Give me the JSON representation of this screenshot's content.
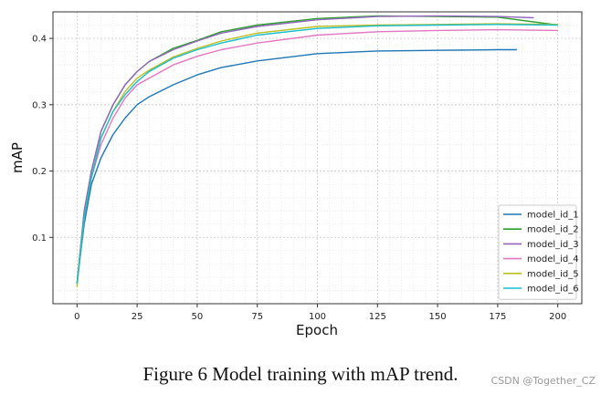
{
  "chart_data": {
    "type": "line",
    "title": "",
    "xlabel": "Epoch",
    "ylabel": "mAP",
    "xlim": [
      -10,
      210
    ],
    "ylim": [
      0.0,
      0.44
    ],
    "xticks": [
      0,
      25,
      50,
      75,
      100,
      125,
      150,
      175,
      200
    ],
    "yticks": [
      0.1,
      0.2,
      0.3,
      0.4
    ],
    "ytick_labels": [
      "0.1",
      "0.2",
      "0.3",
      "0.4"
    ],
    "grid": true,
    "legend_position": "lower-right",
    "series": [
      {
        "name": "model_id_1",
        "color": "#1f77b4",
        "x": [
          0,
          3,
          6,
          10,
          15,
          20,
          25,
          30,
          40,
          50,
          60,
          75,
          100,
          125,
          150,
          175,
          183
        ],
        "y": [
          0.03,
          0.12,
          0.18,
          0.22,
          0.255,
          0.28,
          0.3,
          0.312,
          0.33,
          0.345,
          0.356,
          0.366,
          0.377,
          0.381,
          0.382,
          0.383,
          0.383
        ]
      },
      {
        "name": "model_id_2",
        "color": "#2ca02c",
        "x": [
          0,
          3,
          6,
          10,
          15,
          20,
          25,
          30,
          40,
          50,
          60,
          75,
          100,
          125,
          150,
          175,
          200
        ],
        "y": [
          0.03,
          0.14,
          0.2,
          0.26,
          0.3,
          0.33,
          0.35,
          0.365,
          0.385,
          0.397,
          0.41,
          0.42,
          0.43,
          0.434,
          0.433,
          0.432,
          0.42
        ]
      },
      {
        "name": "model_id_3",
        "color": "#9467bd",
        "x": [
          0,
          3,
          6,
          10,
          15,
          20,
          25,
          30,
          40,
          50,
          60,
          75,
          100,
          125,
          150,
          175,
          190
        ],
        "y": [
          0.03,
          0.14,
          0.2,
          0.26,
          0.3,
          0.33,
          0.35,
          0.365,
          0.383,
          0.396,
          0.408,
          0.418,
          0.428,
          0.433,
          0.434,
          0.433,
          0.431
        ]
      },
      {
        "name": "model_id_4",
        "color": "#e377c2",
        "x": [
          0,
          3,
          6,
          10,
          15,
          20,
          25,
          30,
          40,
          50,
          60,
          75,
          100,
          125,
          150,
          175,
          200
        ],
        "y": [
          0.03,
          0.13,
          0.19,
          0.24,
          0.28,
          0.31,
          0.33,
          0.34,
          0.36,
          0.373,
          0.383,
          0.393,
          0.405,
          0.41,
          0.412,
          0.413,
          0.412
        ]
      },
      {
        "name": "model_id_5",
        "color": "#bcbd22",
        "x": [
          0,
          3,
          6,
          10,
          15,
          20,
          25,
          30,
          40,
          50,
          60,
          75,
          100,
          125,
          150,
          175,
          200
        ],
        "y": [
          0.025,
          0.13,
          0.19,
          0.25,
          0.29,
          0.32,
          0.34,
          0.352,
          0.372,
          0.385,
          0.396,
          0.408,
          0.418,
          0.42,
          0.421,
          0.422,
          0.421
        ]
      },
      {
        "name": "model_id_6",
        "color": "#17becf",
        "x": [
          0,
          3,
          6,
          10,
          15,
          20,
          25,
          30,
          40,
          50,
          60,
          75,
          100,
          125,
          150,
          175,
          200
        ],
        "y": [
          0.03,
          0.13,
          0.19,
          0.25,
          0.29,
          0.315,
          0.335,
          0.35,
          0.37,
          0.383,
          0.393,
          0.405,
          0.415,
          0.419,
          0.42,
          0.421,
          0.42
        ]
      }
    ]
  },
  "caption": "Figure 6 Model training with mAP trend.",
  "watermark": "CSDN @Together_CZ"
}
